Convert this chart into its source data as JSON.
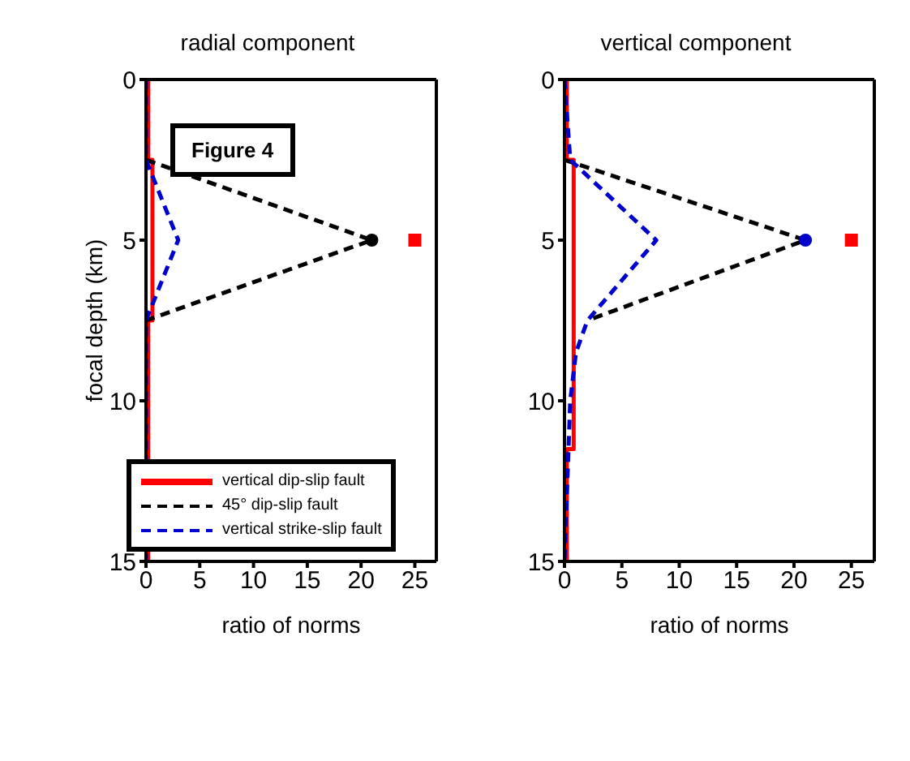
{
  "chart_data": [
    {
      "type": "line",
      "title": "radial component",
      "xlabel": "ratio of norms",
      "ylabel": "focal depth (km)",
      "xlim": [
        0,
        27
      ],
      "ylim": [
        15,
        0
      ],
      "xticks": [
        0,
        5,
        10,
        15,
        20,
        25
      ],
      "yticks": [
        0,
        5,
        10,
        15
      ],
      "legend": "bottom left",
      "annotations": [
        "Figure 4"
      ],
      "marker": "none",
      "series": [
        {
          "name": "vertical dip-slip fault",
          "color": "#ff0000",
          "line_style": "solid",
          "x": [
            0.2,
            0.2,
            0.6,
            0.6,
            0.2,
            0.2
          ],
          "values": [
            0,
            2.5,
            2.5,
            7.5,
            7.5,
            15
          ]
        },
        {
          "name": "45° dip-slip fault",
          "color": "#000000",
          "line_style": "dashed",
          "x": [
            0,
            21,
            0
          ],
          "values": [
            2.5,
            5,
            7.5
          ]
        },
        {
          "name": "vertical strike-slip fault",
          "color": "#0000cc",
          "line_style": "dashed",
          "x": [
            0,
            0,
            3,
            0,
            0
          ],
          "values": [
            0,
            2.5,
            5,
            7.5,
            15
          ]
        },
        {
          "type": "scatter",
          "color": "#000000",
          "marker": "circle",
          "x": [
            21
          ],
          "values": [
            5
          ]
        },
        {
          "type": "scatter",
          "color": "#ff0000",
          "marker": "square",
          "x": [
            25
          ],
          "values": [
            5
          ]
        }
      ]
    },
    {
      "type": "line",
      "title": "vertical component",
      "xlabel": "ratio of norms",
      "xlim": [
        0,
        27
      ],
      "ylim": [
        15,
        0
      ],
      "xticks": [
        0,
        5,
        10,
        15,
        20,
        25
      ],
      "yticks": [
        0,
        5,
        10,
        15
      ],
      "marker": "none",
      "series": [
        {
          "color": "#ff0000",
          "line_style": "solid",
          "x": [
            0.2,
            0.2,
            0.8,
            0.8,
            0.2,
            0.2
          ],
          "values": [
            0,
            2.5,
            2.5,
            11.5,
            11.5,
            15
          ]
        },
        {
          "color": "#000000",
          "line_style": "dashed",
          "x": [
            0,
            21,
            2
          ],
          "values": [
            2.5,
            5,
            7.5
          ]
        },
        {
          "color": "#0000cc",
          "line_style": "dashed",
          "x": [
            0,
            0.5,
            8,
            2,
            1,
            0.5,
            0
          ],
          "values": [
            0,
            2.5,
            5,
            7.5,
            8.5,
            10,
            15
          ]
        },
        {
          "type": "scatter",
          "color": "#0000cc",
          "marker": "circle",
          "x": [
            21
          ],
          "values": [
            5
          ]
        },
        {
          "type": "scatter",
          "color": "#ff0000",
          "marker": "square",
          "x": [
            25
          ],
          "values": [
            5
          ]
        }
      ]
    }
  ]
}
